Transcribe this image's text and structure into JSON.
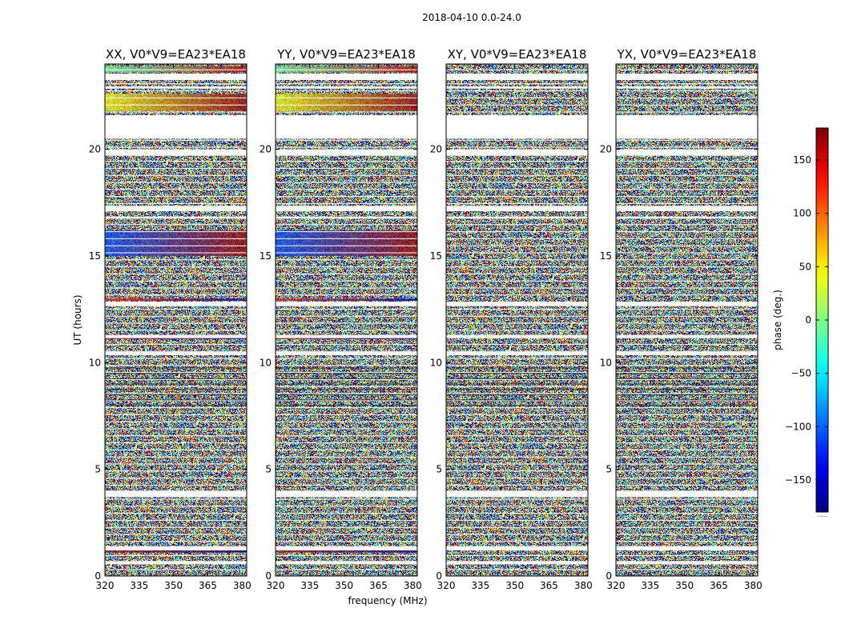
{
  "suptitle": "2018-04-10 0.0-24.0",
  "chart_data": {
    "type": "heatmap",
    "xlabel": "frequency (MHz)",
    "ylabel": "UT (hours)",
    "xlim": [
      320,
      382
    ],
    "ylim": [
      0,
      24
    ],
    "xticks": [
      320,
      335,
      350,
      365,
      380
    ],
    "yticks": [
      0,
      5,
      10,
      15,
      20
    ],
    "colormap": "jet",
    "colorbar": {
      "label": "phase (deg.)",
      "range": [
        -180,
        180
      ],
      "ticks": [
        150,
        100,
        50,
        0,
        -50,
        -100,
        -150
      ],
      "tick_labels": [
        "150",
        "100",
        "50",
        "0",
        "−50",
        "−100",
        "−150"
      ],
      "extra_label": "......"
    },
    "panels": [
      {
        "title": "XX, V0*V9=EA23*EA18",
        "pol": "XX"
      },
      {
        "title": "YY, V0*V9=EA23*EA18",
        "pol": "YY"
      },
      {
        "title": "XY, V0*V9=EA23*EA18",
        "pol": "XY"
      },
      {
        "title": "YX, V0*V9=EA23*EA18",
        "pol": "YX"
      }
    ],
    "flagged_ut_ranges": [
      [
        20.5,
        21.6
      ],
      [
        23.25,
        23.55
      ],
      [
        22.85,
        22.95
      ],
      [
        19.7,
        20.0
      ],
      [
        17.1,
        17.35
      ],
      [
        16.75,
        16.85
      ],
      [
        12.65,
        12.85
      ],
      [
        11.15,
        11.3
      ],
      [
        10.35,
        10.5
      ],
      [
        3.7,
        4.0
      ],
      [
        1.2,
        1.4
      ],
      [
        0.55,
        0.7
      ]
    ],
    "coherent_phase_bands": [
      {
        "ut": [
          23.6,
          23.9
        ],
        "pols": [
          "XX",
          "YY"
        ],
        "phase": [
          -10,
          160
        ]
      },
      {
        "ut": [
          21.8,
          22.6
        ],
        "pols": [
          "XX",
          "YY"
        ],
        "phase": [
          40,
          170
        ]
      },
      {
        "ut": [
          15.0,
          16.2
        ],
        "pols": [
          "XX",
          "YY"
        ],
        "phase": [
          -110,
          170
        ]
      },
      {
        "ut": [
          12.9,
          13.0
        ],
        "pols": [
          "XX",
          "YY"
        ],
        "phase": [
          130,
          -160
        ]
      },
      {
        "ut": [
          11.1,
          11.2
        ],
        "pols": [
          "XX",
          "YY"
        ],
        "phase": [
          150,
          -150
        ]
      },
      {
        "ut": [
          1.1,
          1.2
        ],
        "pols": [
          "XX",
          "YY"
        ],
        "phase": [
          160,
          -170
        ]
      }
    ]
  }
}
